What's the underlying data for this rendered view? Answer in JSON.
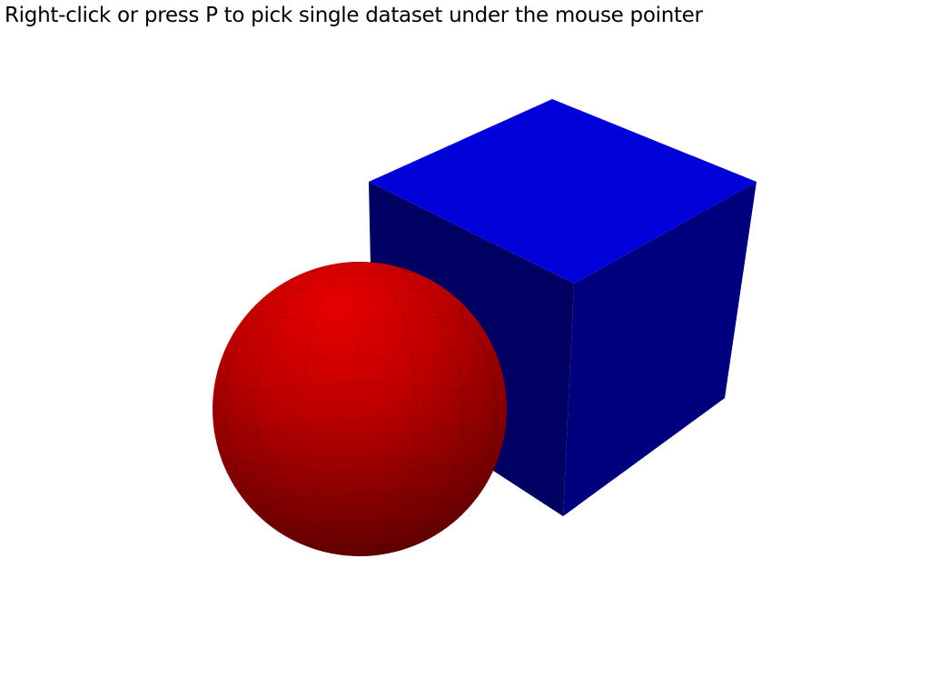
{
  "overlay": {
    "instruction_text": "Right-click or press P to pick single dataset under the mouse pointer",
    "text_color": "#000000"
  },
  "viewport": {
    "background_color": "#ffffff"
  },
  "scene": {
    "cube": {
      "color_top": "#0000d8",
      "color_left": "#000063",
      "color_right": "#00007f"
    },
    "sphere": {
      "color": "#e80000",
      "shadow_color": "#4f0000"
    }
  }
}
